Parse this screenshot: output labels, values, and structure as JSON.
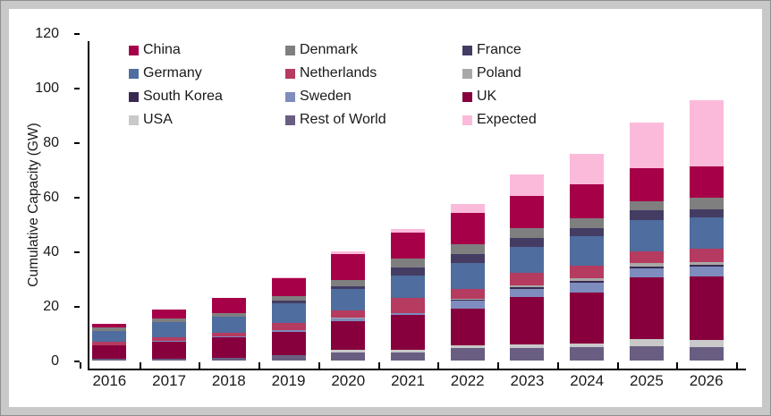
{
  "chart": {
    "ylabel": "Cumulative Capacity (GW)",
    "y_ticks": [
      0,
      20,
      40,
      60,
      80,
      100,
      120
    ],
    "background": "#ffffff",
    "frame_color": "#c8c8c8",
    "axis_color": "#000000"
  },
  "chart_data": {
    "type": "bar",
    "subtype": "stacked",
    "title": "",
    "xlabel": "",
    "ylabel": "Cumulative Capacity (GW)",
    "ylim": [
      0,
      120
    ],
    "grid": false,
    "legend_position": "top-inside-3-columns",
    "categories": [
      "2016",
      "2017",
      "2018",
      "2019",
      "2020",
      "2021",
      "2022",
      "2023",
      "2024",
      "2025",
      "2026"
    ],
    "stack_order_note": "series listed bottom-to-top as stacked",
    "series": [
      {
        "name": "Rest of World",
        "color": "#695E82",
        "values": [
          0.7,
          0.8,
          1.0,
          1.9,
          3.0,
          2.8,
          4.6,
          4.7,
          5.0,
          5.2,
          4.8
        ]
      },
      {
        "name": "USA",
        "color": "#C9C9C9",
        "values": [
          0,
          0,
          0,
          0,
          0.8,
          1.1,
          0.9,
          1.1,
          1.1,
          2.6,
          2.6
        ]
      },
      {
        "name": "UK",
        "color": "#87003D",
        "values": [
          4.8,
          6.2,
          7.6,
          8.7,
          10.5,
          12.7,
          13.5,
          17.6,
          18.8,
          22.6,
          23.3
        ]
      },
      {
        "name": "Sweden",
        "color": "#7E8CBE",
        "values": [
          0.2,
          0.2,
          0.2,
          0.4,
          1.2,
          0.7,
          3.0,
          2.7,
          3.8,
          3.4,
          3.6
        ]
      },
      {
        "name": "South Korea",
        "color": "#382A50",
        "values": [
          0,
          0,
          0,
          0,
          0,
          0,
          0.3,
          0.7,
          0.5,
          0.5,
          0.8
        ]
      },
      {
        "name": "Poland",
        "color": "#A9A9A9",
        "values": [
          0,
          0,
          0,
          0,
          0.3,
          0,
          0.4,
          0.6,
          0.9,
          1.3,
          1.1
        ]
      },
      {
        "name": "Netherlands",
        "color": "#B53B60",
        "values": [
          1.2,
          1.2,
          1.3,
          2.8,
          2.6,
          5.6,
          3.6,
          4.6,
          4.8,
          4.4,
          4.9
        ]
      },
      {
        "name": "Germany",
        "color": "#4F6D9E",
        "values": [
          3.9,
          5.7,
          5.9,
          7.2,
          7.9,
          8.4,
          9.3,
          9.6,
          10.6,
          11.5,
          11.5
        ]
      },
      {
        "name": "France",
        "color": "#453C64",
        "values": [
          0,
          0,
          0,
          0.9,
          0.8,
          2.9,
          3.5,
          3.3,
          3.1,
          3.5,
          3.0
        ]
      },
      {
        "name": "Denmark",
        "color": "#7F7F7F",
        "values": [
          1.3,
          1.3,
          1.5,
          1.7,
          2.5,
          3.1,
          3.4,
          3.5,
          3.6,
          3.4,
          4.1
        ]
      },
      {
        "name": "China",
        "color": "#A60049",
        "values": [
          1.3,
          3.2,
          5.4,
          6.6,
          9.6,
          9.6,
          11.5,
          12.0,
          12.4,
          12.0,
          11.4
        ]
      },
      {
        "name": "Expected",
        "color": "#FCBADA",
        "values": [
          0,
          0,
          0,
          0.3,
          0.7,
          1.3,
          3.4,
          7.9,
          11.1,
          16.9,
          24.3
        ]
      }
    ],
    "totals": [
      13.4,
      18.6,
      22.9,
      30.5,
      39.9,
      48.2,
      57.4,
      68.3,
      75.7,
      87.3,
      95.4
    ],
    "legend_display_order": [
      "China",
      "Denmark",
      "France",
      "Germany",
      "Netherlands",
      "Poland",
      "South Korea",
      "Sweden",
      "UK",
      "USA",
      "Rest of World",
      "Expected"
    ]
  }
}
